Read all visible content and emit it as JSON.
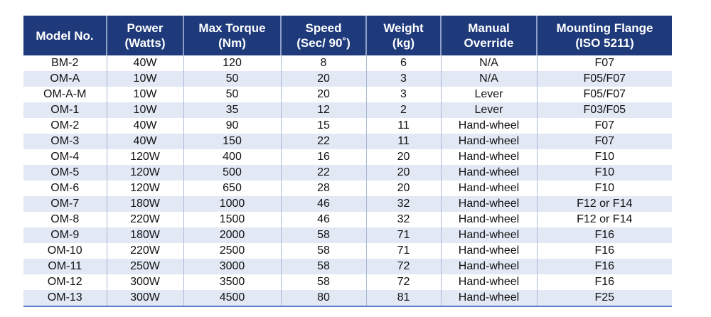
{
  "table": {
    "headers": [
      [
        "Model No.",
        ""
      ],
      [
        "Power",
        "(Watts)"
      ],
      [
        "Max Torque",
        "(Nm)"
      ],
      [
        "Speed",
        "(Sec/ 90˚)"
      ],
      [
        "Weight",
        "(kg)"
      ],
      [
        "Manual",
        "Override"
      ],
      [
        "Mounting Flange",
        "(ISO 5211)"
      ]
    ],
    "rows": [
      [
        "BM-2",
        "40W",
        "120",
        "8",
        "6",
        "N/A",
        "F07"
      ],
      [
        "OM-A",
        "10W",
        "50",
        "20",
        "3",
        "N/A",
        "F05/F07"
      ],
      [
        "OM-A-M",
        "10W",
        "50",
        "20",
        "3",
        "Lever",
        "F05/F07"
      ],
      [
        "OM-1",
        "10W",
        "35",
        "12",
        "2",
        "Lever",
        "F03/F05"
      ],
      [
        "OM-2",
        "40W",
        "90",
        "15",
        "11",
        "Hand-wheel",
        "F07"
      ],
      [
        "OM-3",
        "40W",
        "150",
        "22",
        "11",
        "Hand-wheel",
        "F07"
      ],
      [
        "OM-4",
        "120W",
        "400",
        "16",
        "20",
        "Hand-wheel",
        "F10"
      ],
      [
        "OM-5",
        "120W",
        "500",
        "22",
        "20",
        "Hand-wheel",
        "F10"
      ],
      [
        "OM-6",
        "120W",
        "650",
        "28",
        "20",
        "Hand-wheel",
        "F10"
      ],
      [
        "OM-7",
        "180W",
        "1000",
        "46",
        "32",
        "Hand-wheel",
        "F12 or F14"
      ],
      [
        "OM-8",
        "220W",
        "1500",
        "46",
        "32",
        "Hand-wheel",
        "F12 or F14"
      ],
      [
        "OM-9",
        "180W",
        "2000",
        "58",
        "71",
        "Hand-wheel",
        "F16"
      ],
      [
        "OM-10",
        "220W",
        "2500",
        "58",
        "71",
        "Hand-wheel",
        "F16"
      ],
      [
        "OM-11",
        "250W",
        "3000",
        "58",
        "72",
        "Hand-wheel",
        "F16"
      ],
      [
        "OM-12",
        "300W",
        "3500",
        "58",
        "72",
        "Hand-wheel",
        "F16"
      ],
      [
        "OM-13",
        "300W",
        "4500",
        "80",
        "81",
        "Hand-wheel",
        "F25"
      ]
    ]
  },
  "colors": {
    "header_bg": "#1e3a7b",
    "alt_row": "#e2e9f5"
  }
}
